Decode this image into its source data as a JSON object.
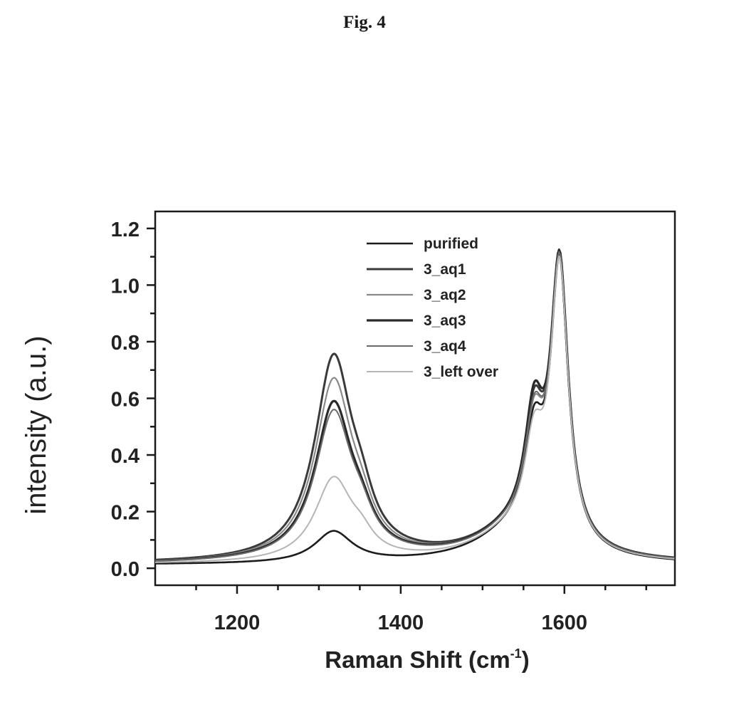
{
  "figure_label": "Fig. 4",
  "chart_data": {
    "type": "line",
    "title": "",
    "xlabel": "Raman Shift (cm",
    "xlabel_sup": "-1",
    "xlabel_close": ")",
    "ylabel": "intensity (a.u.)",
    "xlim": [
      1100,
      1735
    ],
    "ylim": [
      -0.06,
      1.26
    ],
    "xticks": [
      1200,
      1400,
      1600
    ],
    "yticks": [
      0.0,
      0.2,
      0.4,
      0.6,
      0.8,
      1.0,
      1.2
    ],
    "ytick_labels": [
      "0.0",
      "0.2",
      "0.4",
      "0.6",
      "0.8",
      "1.0",
      "1.2"
    ],
    "legend_position": "upper-middle",
    "grid": false,
    "series": [
      {
        "name": "purified",
        "color": "#1c1c1c",
        "width": 2.6,
        "d_peak": 0.11,
        "d_shoulder": 0.0,
        "g_minus": 0.43,
        "g_plus": 1.0,
        "base_low": 0.012
      },
      {
        "name": "3_aq1",
        "color": "#3a3a3a",
        "width": 3.0,
        "d_peak": 0.71,
        "d_shoulder": 0.1,
        "g_minus": 0.48,
        "g_plus": 1.0,
        "base_low": 0.015
      },
      {
        "name": "3_aq2",
        "color": "#8a8a8a",
        "width": 2.2,
        "d_peak": 0.63,
        "d_shoulder": 0.08,
        "g_minus": 0.45,
        "g_plus": 1.0,
        "base_low": 0.015
      },
      {
        "name": "3_aq3",
        "color": "#2a2a2a",
        "width": 3.2,
        "d_peak": 0.55,
        "d_shoulder": 0.07,
        "g_minus": 0.5,
        "g_plus": 1.0,
        "base_low": 0.015
      },
      {
        "name": "3_aq4",
        "color": "#6a6a6a",
        "width": 2.0,
        "d_peak": 0.52,
        "d_shoulder": 0.07,
        "g_minus": 0.46,
        "g_plus": 1.0,
        "base_low": 0.015
      },
      {
        "name": "3_left over",
        "color": "#b5b5b5",
        "width": 2.0,
        "d_peak": 0.29,
        "d_shoulder": 0.05,
        "g_minus": 0.4,
        "g_plus": 1.0,
        "base_low": 0.013
      }
    ],
    "peaks": {
      "d_center": 1318,
      "d_hw": 28,
      "shoulder_center": 1352,
      "shoulder_hw": 18,
      "g_minus_center": 1563,
      "g_minus_hw": 14,
      "g_plus_center": 1594,
      "g_plus_hw": 13
    }
  }
}
